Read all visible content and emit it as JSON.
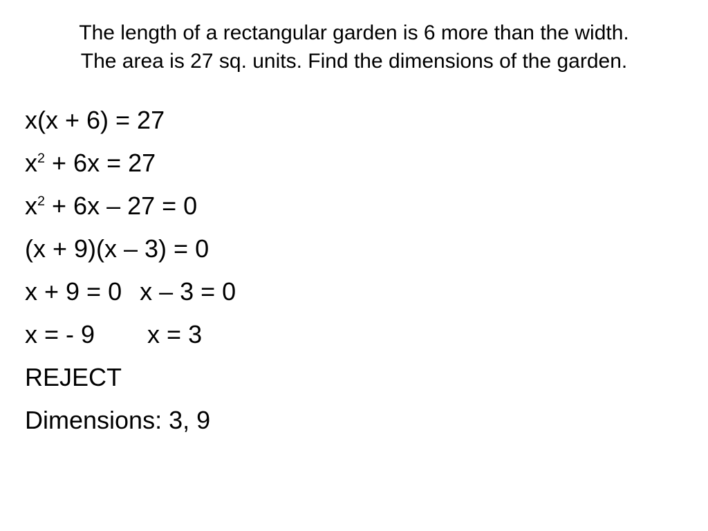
{
  "problem": {
    "line1": "The length of a rectangular garden is 6 more than  the width.",
    "line2": "The area is 27 sq. units.  Find the dimensions of the garden."
  },
  "work": {
    "s1_a": "x(x + 6) = 27",
    "s2_a": "x",
    "s2_b": " + 6x = 27",
    "s3_a": "x",
    "s3_b": " + 6x – 27 = 0",
    "s4_a": "(x + 9)(x – 3) = 0",
    "s5_a": "x + 9 = 0",
    "s5_b": "x – 3 = 0",
    "s6_a": "x = - 9",
    "s6_b": "x = 3",
    "s7_a": "REJECT",
    "s8_a": "Dimensions: 3, 9",
    "exp": "2"
  },
  "layout": {
    "pair5_gap": 26,
    "pair6_gap": 76
  }
}
